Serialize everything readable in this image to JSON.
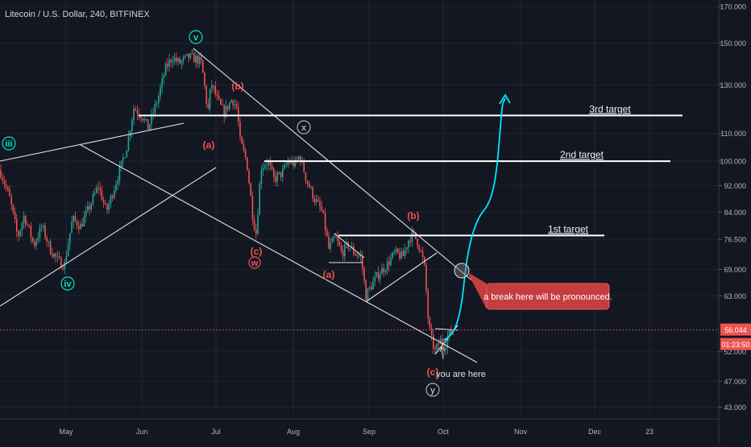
{
  "header": {
    "title": "Litecoin / U.S. Dollar, 240, BITFINEX"
  },
  "chart_data": {
    "type": "candlestick",
    "x_labels": [
      "May",
      "Jun",
      "Jul",
      "Aug",
      "Sep",
      "Oct",
      "Nov",
      "Dec",
      "23"
    ],
    "y_scale": "log",
    "y_ticks": [
      "170.000",
      "150.000",
      "130.000",
      "110.000",
      "100.000",
      "92.000",
      "84.000",
      "76.500",
      "69.000",
      "63.000",
      "52.000",
      "47.000",
      "43.000"
    ],
    "ylim": [
      42,
      172
    ],
    "current_price": "56.044",
    "countdown": "01:23:50",
    "colors": {
      "bg": "#131722",
      "up": "#26a69a",
      "down": "#ef5350",
      "projection": "#00e5ff",
      "price": "#ef5350"
    },
    "targets": [
      {
        "label": "1st target",
        "value": 77.5
      },
      {
        "label": "2nd target",
        "value": 100
      },
      {
        "label": "3rd target",
        "value": 117
      }
    ],
    "wave_labels": [
      {
        "text": "iii",
        "color": "#00e5c8"
      },
      {
        "text": "iv",
        "color": "#00e5c8"
      },
      {
        "text": "v",
        "color": "#00e5c8"
      },
      {
        "text": "w",
        "color": "#ef5350"
      },
      {
        "text": "x",
        "color": "#b0b0b0"
      },
      {
        "text": "y",
        "color": "#b0b0b0"
      },
      {
        "text": "(a)",
        "color": "#ef5350"
      },
      {
        "text": "(b)",
        "color": "#ef5350"
      },
      {
        "text": "(c)",
        "color": "#ef5350"
      },
      {
        "text": "(a)",
        "color": "#ef5350"
      },
      {
        "text": "(b)",
        "color": "#ef5350"
      },
      {
        "text": "(c)",
        "color": "#ef5350"
      }
    ],
    "annotations": {
      "callout": "a break here will be pronounced.",
      "here": "you are here"
    }
  }
}
